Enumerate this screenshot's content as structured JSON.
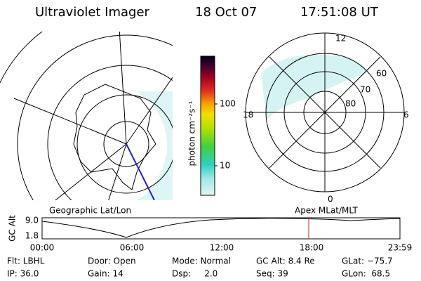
{
  "header": {
    "title": "Ultraviolet Imager",
    "date": "18 Oct 07",
    "time": "17:51:08 UT"
  },
  "colorbar": {
    "label": "photon cm⁻²s⁻¹",
    "ticks": [
      "100",
      "10"
    ]
  },
  "polar_plot": {
    "clock_labels": [
      "12",
      "18",
      "6",
      "0"
    ],
    "lat_labels": [
      "60",
      "70",
      "80"
    ]
  },
  "captions": {
    "left": "Geographic Lat/Lon",
    "right": "Apex MLat/MLT"
  },
  "altitude_plot": {
    "ylabel": "GC Alt",
    "yticks": [
      "9.0",
      "1.8"
    ],
    "xticks": [
      "00:00",
      "06:00",
      "12:00",
      "18:00",
      "23:59"
    ]
  },
  "info": [
    [
      "Flt: LBHL",
      "Door: Open",
      "Mode: Normal",
      "GC Alt: 8.4 Re",
      "GLat: −75.7"
    ],
    [
      "IP: 36.0",
      "Gain: 14",
      "Dsp:     2.0",
      "Seq: 39",
      "GLon:  68.5"
    ]
  ]
}
